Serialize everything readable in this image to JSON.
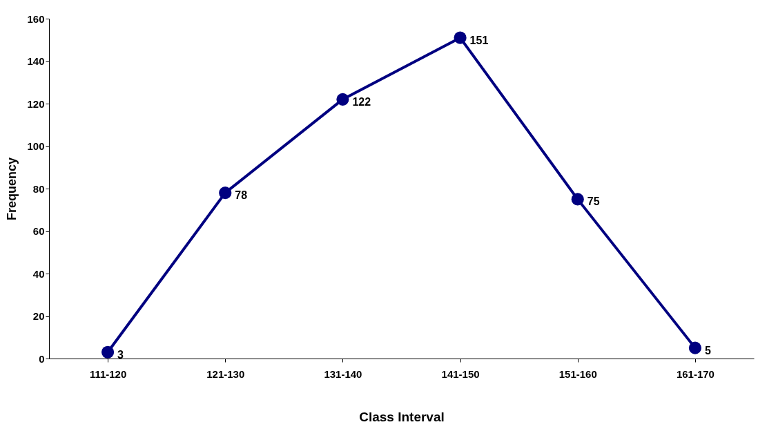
{
  "chart_data": {
    "type": "line",
    "xlabel": "Class Interval",
    "ylabel": "Frequency",
    "categories": [
      "111-120",
      "121-130",
      "131-140",
      "141-150",
      "151-160",
      "161-170"
    ],
    "series": [
      {
        "color": "#000080",
        "values": [
          3,
          78,
          122,
          151,
          75,
          5
        ]
      }
    ],
    "ylim": [
      0,
      160
    ],
    "yticks": [
      0,
      20,
      40,
      60,
      80,
      100,
      120,
      140,
      160
    ],
    "data_labels": true,
    "marker": "circle",
    "line_style": "solid",
    "grid": false
  }
}
